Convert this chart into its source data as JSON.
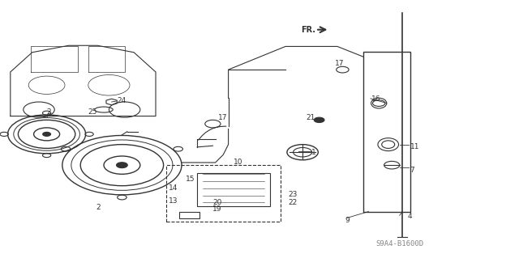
{
  "bg_color": "#ffffff",
  "line_color": "#333333",
  "diagram_code": "S9A4-B1600D",
  "fr_label": "FR.",
  "figsize": [
    6.4,
    3.19
  ],
  "dpi": 100
}
